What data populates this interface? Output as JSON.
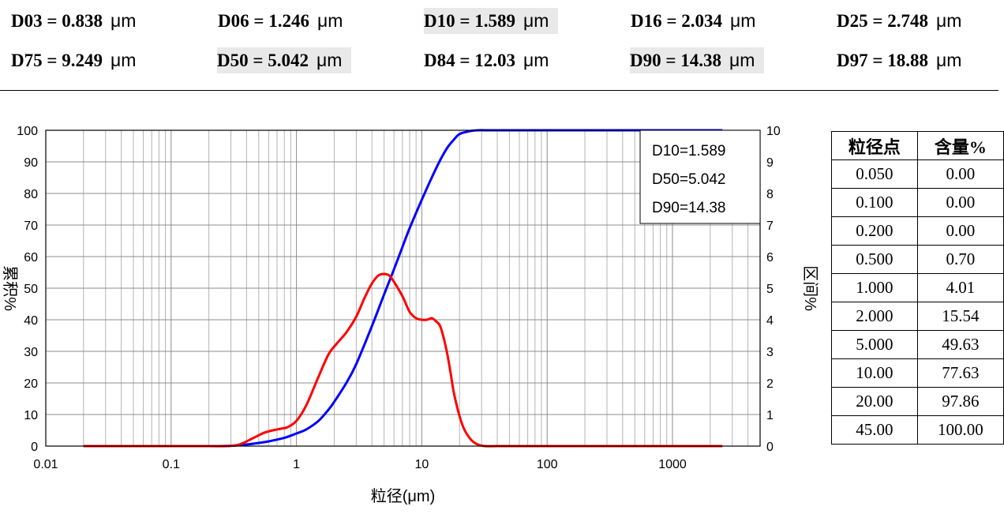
{
  "summary": {
    "unit": "μm",
    "row1": [
      {
        "label": "D03 = 0.838",
        "highlight": false
      },
      {
        "label": "D06 = 1.246",
        "highlight": false
      },
      {
        "label": "D10 = 1.589",
        "highlight": true
      },
      {
        "label": "D16 = 2.034",
        "highlight": false
      },
      {
        "label": "D25 = 2.748",
        "highlight": false
      }
    ],
    "row2": [
      {
        "label": "D75 = 9.249",
        "highlight": false
      },
      {
        "label": "D50 = 5.042",
        "highlight": true
      },
      {
        "label": "D84 = 12.03",
        "highlight": false
      },
      {
        "label": "D90 = 14.38",
        "highlight": true
      },
      {
        "label": "D97 = 18.88",
        "highlight": false
      }
    ]
  },
  "chart_data": {
    "type": "line",
    "xscale": "log",
    "xlim": [
      0.01,
      5000
    ],
    "xlabel": "粒径(μm)",
    "x_ticks": [
      "0.01",
      "0.1",
      "1",
      "10",
      "100",
      "1000"
    ],
    "y_left": {
      "label": "累积%",
      "lim": [
        0,
        100
      ],
      "ticks": [
        "0",
        "10",
        "20",
        "30",
        "40",
        "50",
        "60",
        "70",
        "80",
        "90",
        "100"
      ]
    },
    "y_right": {
      "label": "区间%",
      "lim": [
        0,
        10
      ],
      "ticks": [
        "0",
        "1",
        "2",
        "3",
        "4",
        "5",
        "6",
        "7",
        "8",
        "9",
        "10"
      ]
    },
    "grid": true,
    "legend_box": [
      "D10=1.589",
      "D50=5.042",
      "D90=14.38"
    ],
    "series": [
      {
        "name": "cumulative",
        "axis": "left",
        "color": "#0000ff",
        "x": [
          0.02,
          0.1,
          0.2,
          0.3,
          0.4,
          0.5,
          0.6,
          0.8,
          1.0,
          1.2,
          1.5,
          1.8,
          2.0,
          2.5,
          3.0,
          4.0,
          5.0,
          6.0,
          7.0,
          8.0,
          10,
          12,
          14,
          16,
          18,
          20,
          24,
          28,
          35,
          50,
          100,
          500,
          1000,
          2500
        ],
        "y": [
          0,
          0,
          0,
          0.1,
          0.5,
          1.0,
          1.5,
          2.6,
          4.0,
          5.3,
          8.0,
          11.5,
          14.0,
          20.0,
          26.0,
          38.0,
          48.0,
          56.0,
          63.0,
          69.0,
          78.0,
          85.0,
          90.5,
          94.5,
          97.0,
          98.8,
          99.7,
          100,
          100,
          100,
          100,
          100,
          100,
          100
        ]
      },
      {
        "name": "interval",
        "axis": "right",
        "color": "#ff0000",
        "x": [
          0.02,
          0.1,
          0.2,
          0.28,
          0.35,
          0.45,
          0.55,
          0.65,
          0.75,
          0.85,
          1.0,
          1.2,
          1.5,
          1.8,
          2.1,
          2.5,
          3.0,
          3.5,
          4.0,
          4.5,
          5.0,
          5.5,
          6.0,
          7.0,
          8.0,
          9.0,
          10,
          11,
          12,
          13,
          14,
          15,
          16,
          17,
          18,
          20,
          22,
          25,
          28,
          32,
          40,
          60,
          100,
          500,
          1000,
          2500
        ],
        "y": [
          0,
          0,
          0,
          0,
          0.05,
          0.25,
          0.42,
          0.5,
          0.55,
          0.6,
          0.8,
          1.3,
          2.2,
          2.9,
          3.25,
          3.6,
          4.1,
          4.7,
          5.15,
          5.4,
          5.45,
          5.4,
          5.2,
          4.75,
          4.25,
          4.05,
          4.0,
          4.0,
          4.05,
          3.95,
          3.8,
          3.4,
          2.9,
          2.3,
          1.7,
          0.95,
          0.5,
          0.18,
          0.05,
          0,
          0,
          0,
          0,
          0,
          0,
          0
        ]
      }
    ]
  },
  "table": {
    "headers": [
      "粒径点",
      "含量%"
    ],
    "rows": [
      [
        "0.050",
        "0.00"
      ],
      [
        "0.100",
        "0.00"
      ],
      [
        "0.200",
        "0.00"
      ],
      [
        "0.500",
        "0.70"
      ],
      [
        "1.000",
        "4.01"
      ],
      [
        "2.000",
        "15.54"
      ],
      [
        "5.000",
        "49.63"
      ],
      [
        "10.00",
        "77.63"
      ],
      [
        "20.00",
        "97.86"
      ],
      [
        "45.00",
        "100.00"
      ]
    ]
  }
}
